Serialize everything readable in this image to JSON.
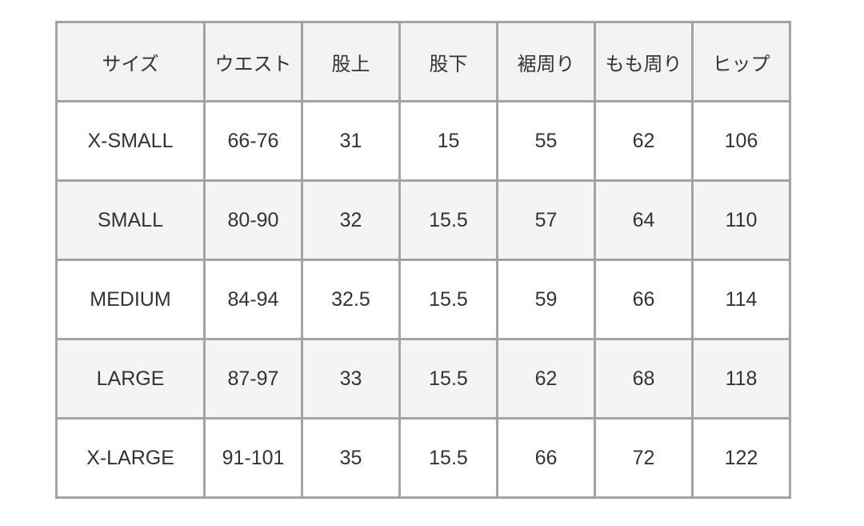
{
  "table": {
    "headers": [
      "サイズ",
      "ウエスト",
      "股上",
      "股下",
      "裾周り",
      "もも周り",
      "ヒップ"
    ],
    "rows": [
      [
        "X-SMALL",
        "66-76",
        "31",
        "15",
        "55",
        "62",
        "106"
      ],
      [
        "SMALL",
        "80-90",
        "32",
        "15.5",
        "57",
        "64",
        "110"
      ],
      [
        "MEDIUM",
        "84-94",
        "32.5",
        "15.5",
        "59",
        "66",
        "114"
      ],
      [
        "LARGE",
        "87-97",
        "33",
        "15.5",
        "62",
        "68",
        "118"
      ],
      [
        "X-LARGE",
        "91-101",
        "35",
        "15.5",
        "66",
        "72",
        "122"
      ]
    ]
  }
}
